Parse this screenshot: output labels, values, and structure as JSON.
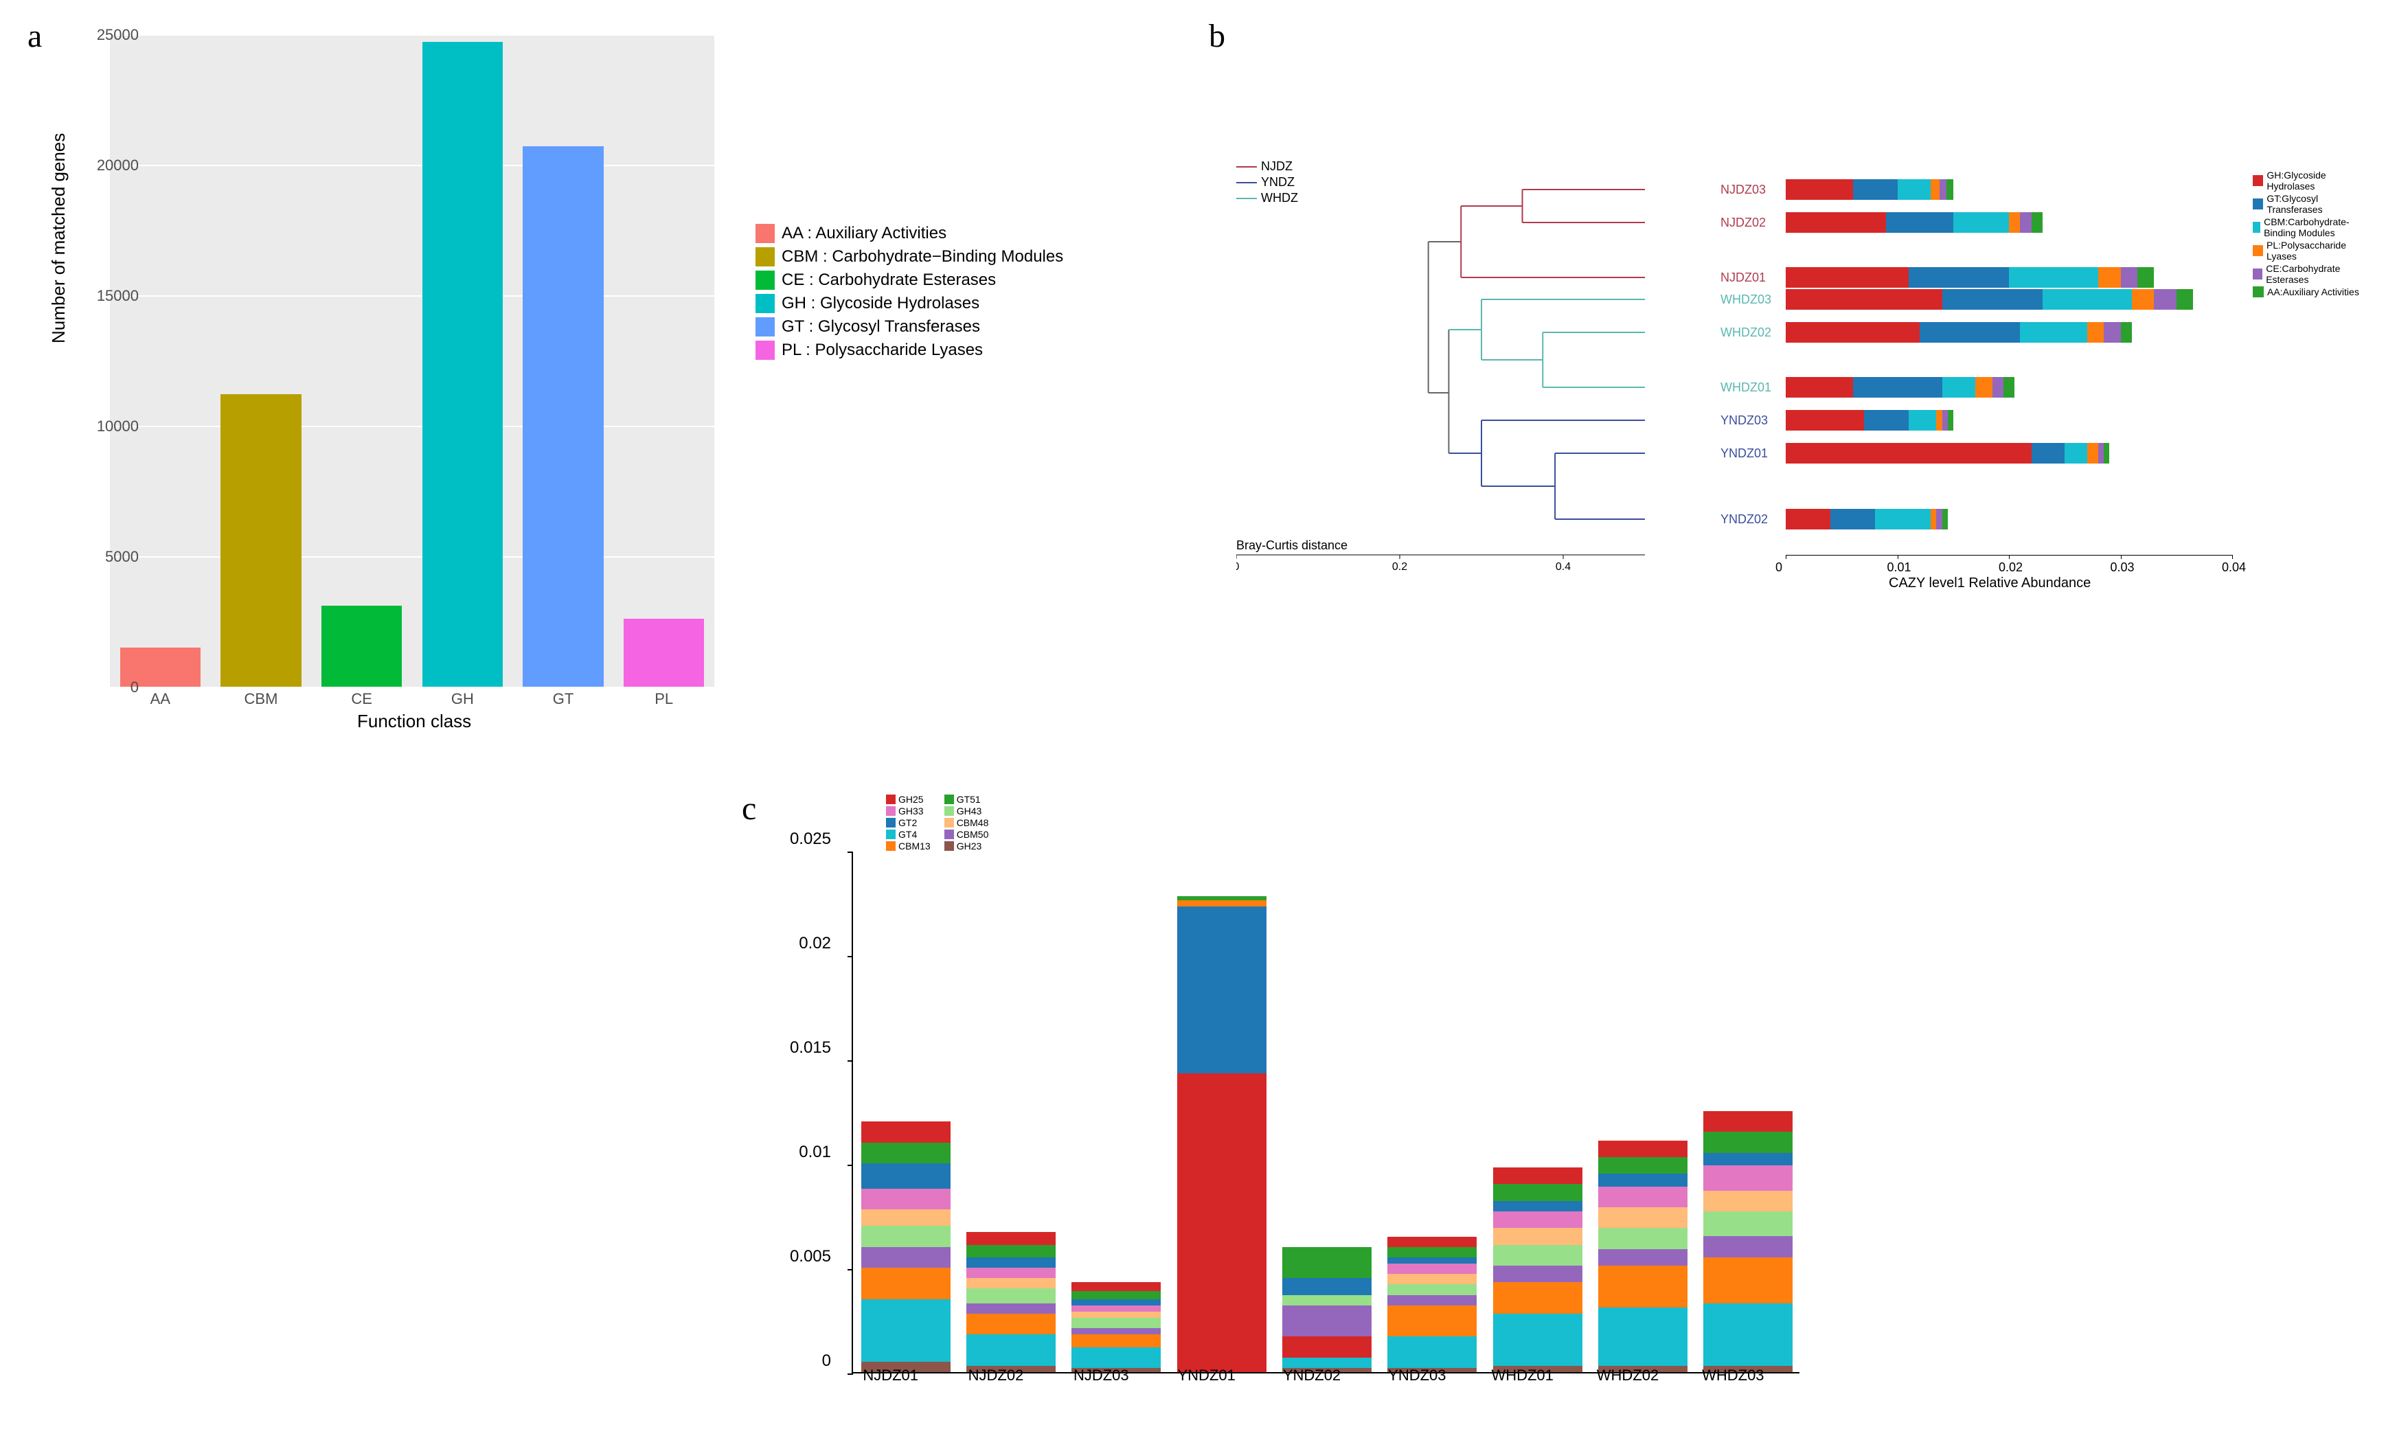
{
  "panelA": {
    "label": "a",
    "type": "bar",
    "xlabel": "Function class",
    "ylabel": "Number of matched genes",
    "background_color": "#ebebeb",
    "grid_color": "#ffffff",
    "ylim": [
      0,
      25000
    ],
    "yticks": [
      0,
      5000,
      10000,
      15000,
      20000,
      25000
    ],
    "categories": [
      "AA",
      "CBM",
      "CE",
      "GH",
      "GT",
      "PL"
    ],
    "values": [
      1500,
      11200,
      3100,
      24700,
      20700,
      2600
    ],
    "colors": [
      "#f8766d",
      "#b79f00",
      "#00ba38",
      "#00bfc4",
      "#619cff",
      "#f564e3"
    ],
    "legend": [
      {
        "code": "AA",
        "label": "AA : Auxiliary Activities",
        "color": "#f8766d"
      },
      {
        "code": "CBM",
        "label": "CBM : Carbohydrate−Binding Modules",
        "color": "#b79f00"
      },
      {
        "code": "CE",
        "label": "CE : Carbohydrate Esterases",
        "color": "#00ba38"
      },
      {
        "code": "GH",
        "label": "GH : Glycoside Hydrolases",
        "color": "#00bfc4"
      },
      {
        "code": "GT",
        "label": "GT : Glycosyl Transferases",
        "color": "#619cff"
      },
      {
        "code": "PL",
        "label": "PL : Polysaccharide Lyases",
        "color": "#f564e3"
      }
    ]
  },
  "panelB": {
    "label": "b",
    "type": "dendrogram_stackedbar",
    "tree_legend": [
      {
        "label": "NJDZ",
        "color": "#b03a4e"
      },
      {
        "label": "YNDZ",
        "color": "#3a4e9e"
      },
      {
        "label": "WHDZ",
        "color": "#5ab7b0"
      }
    ],
    "cazy_legend": [
      {
        "label": "GH:Glycoside Hydrolases",
        "color": "#d62728"
      },
      {
        "label": "GT:Glycosyl Transferases",
        "color": "#1f77b4"
      },
      {
        "label": "CBM:Carbohydrate-Binding Modules",
        "color": "#17becf"
      },
      {
        "label": "PL:Polysaccharide Lyases",
        "color": "#ff7f0e"
      },
      {
        "label": "CE:Carbohydrate Esterases",
        "color": "#9467bd"
      },
      {
        "label": "AA:Auxiliary Activities",
        "color": "#2ca02c"
      }
    ],
    "bray_label": "Bray-Curtis distance",
    "bray_ticks": [
      0,
      0.2,
      0.4
    ],
    "bray_max": 0.5,
    "x_label": "CAZY level1 Relative Abundance",
    "x_ticks": [
      0,
      0.01,
      0.02,
      0.03,
      0.04
    ],
    "x_max": 0.04,
    "samples": [
      {
        "name": "NJDZ03",
        "color": "#b03a4e",
        "stacks": [
          {
            "c": "#d62728",
            "v": 0.006
          },
          {
            "c": "#1f77b4",
            "v": 0.004
          },
          {
            "c": "#17becf",
            "v": 0.003
          },
          {
            "c": "#ff7f0e",
            "v": 0.0008
          },
          {
            "c": "#9467bd",
            "v": 0.0006
          },
          {
            "c": "#2ca02c",
            "v": 0.0006
          }
        ]
      },
      {
        "name": "NJDZ02",
        "color": "#b03a4e",
        "stacks": [
          {
            "c": "#d62728",
            "v": 0.009
          },
          {
            "c": "#1f77b4",
            "v": 0.006
          },
          {
            "c": "#17becf",
            "v": 0.005
          },
          {
            "c": "#ff7f0e",
            "v": 0.001
          },
          {
            "c": "#9467bd",
            "v": 0.001
          },
          {
            "c": "#2ca02c",
            "v": 0.001
          }
        ]
      },
      {
        "name": "NJDZ01",
        "color": "#b03a4e",
        "stacks": [
          {
            "c": "#d62728",
            "v": 0.011
          },
          {
            "c": "#1f77b4",
            "v": 0.009
          },
          {
            "c": "#17becf",
            "v": 0.008
          },
          {
            "c": "#ff7f0e",
            "v": 0.002
          },
          {
            "c": "#9467bd",
            "v": 0.0015
          },
          {
            "c": "#2ca02c",
            "v": 0.0015
          }
        ]
      },
      {
        "name": "WHDZ03",
        "color": "#5ab7b0",
        "stacks": [
          {
            "c": "#d62728",
            "v": 0.014
          },
          {
            "c": "#1f77b4",
            "v": 0.009
          },
          {
            "c": "#17becf",
            "v": 0.008
          },
          {
            "c": "#ff7f0e",
            "v": 0.002
          },
          {
            "c": "#9467bd",
            "v": 0.002
          },
          {
            "c": "#2ca02c",
            "v": 0.0015
          }
        ]
      },
      {
        "name": "WHDZ02",
        "color": "#5ab7b0",
        "stacks": [
          {
            "c": "#d62728",
            "v": 0.012
          },
          {
            "c": "#1f77b4",
            "v": 0.009
          },
          {
            "c": "#17becf",
            "v": 0.006
          },
          {
            "c": "#ff7f0e",
            "v": 0.0015
          },
          {
            "c": "#9467bd",
            "v": 0.0015
          },
          {
            "c": "#2ca02c",
            "v": 0.001
          }
        ]
      },
      {
        "name": "WHDZ01",
        "color": "#5ab7b0",
        "stacks": [
          {
            "c": "#d62728",
            "v": 0.006
          },
          {
            "c": "#1f77b4",
            "v": 0.008
          },
          {
            "c": "#17becf",
            "v": 0.003
          },
          {
            "c": "#ff7f0e",
            "v": 0.0015
          },
          {
            "c": "#9467bd",
            "v": 0.001
          },
          {
            "c": "#2ca02c",
            "v": 0.001
          }
        ]
      },
      {
        "name": "YNDZ03",
        "color": "#3a4e9e",
        "stacks": [
          {
            "c": "#d62728",
            "v": 0.007
          },
          {
            "c": "#1f77b4",
            "v": 0.004
          },
          {
            "c": "#17becf",
            "v": 0.0025
          },
          {
            "c": "#ff7f0e",
            "v": 0.0005
          },
          {
            "c": "#9467bd",
            "v": 0.0005
          },
          {
            "c": "#2ca02c",
            "v": 0.0005
          }
        ]
      },
      {
        "name": "YNDZ01",
        "color": "#3a4e9e",
        "stacks": [
          {
            "c": "#d62728",
            "v": 0.022
          },
          {
            "c": "#1f77b4",
            "v": 0.003
          },
          {
            "c": "#17becf",
            "v": 0.002
          },
          {
            "c": "#ff7f0e",
            "v": 0.001
          },
          {
            "c": "#9467bd",
            "v": 0.0005
          },
          {
            "c": "#2ca02c",
            "v": 0.0005
          }
        ]
      },
      {
        "name": "YNDZ02",
        "color": "#3a4e9e",
        "stacks": [
          {
            "c": "#d62728",
            "v": 0.004
          },
          {
            "c": "#1f77b4",
            "v": 0.004
          },
          {
            "c": "#17becf",
            "v": 0.005
          },
          {
            "c": "#ff7f0e",
            "v": 0.0005
          },
          {
            "c": "#9467bd",
            "v": 0.0005
          },
          {
            "c": "#2ca02c",
            "v": 0.0005
          }
        ]
      }
    ],
    "dendro": {
      "lines": [
        {
          "x1": 0.47,
          "y1": 0.23,
          "x2": 0.47,
          "y2": 0.78,
          "c": "#666"
        },
        {
          "x1": 0.47,
          "y1": 0.23,
          "x2": 0.55,
          "y2": 0.23,
          "c": "#666"
        },
        {
          "x1": 0.55,
          "y1": 0.1,
          "x2": 0.55,
          "y2": 0.36,
          "c": "#b03a4e"
        },
        {
          "x1": 0.55,
          "y1": 0.1,
          "x2": 0.7,
          "y2": 0.1,
          "c": "#b03a4e"
        },
        {
          "x1": 0.7,
          "y1": 0.04,
          "x2": 0.7,
          "y2": 0.16,
          "c": "#b03a4e"
        },
        {
          "x1": 0.7,
          "y1": 0.04,
          "x2": 1.0,
          "y2": 0.04,
          "c": "#b03a4e"
        },
        {
          "x1": 0.7,
          "y1": 0.16,
          "x2": 1.0,
          "y2": 0.16,
          "c": "#b03a4e"
        },
        {
          "x1": 0.55,
          "y1": 0.36,
          "x2": 1.0,
          "y2": 0.36,
          "c": "#b03a4e"
        },
        {
          "x1": 0.47,
          "y1": 0.78,
          "x2": 0.52,
          "y2": 0.78,
          "c": "#666"
        },
        {
          "x1": 0.52,
          "y1": 0.55,
          "x2": 0.52,
          "y2": 1.0,
          "c": "#666"
        },
        {
          "x1": 0.52,
          "y1": 0.55,
          "x2": 0.6,
          "y2": 0.55,
          "c": "#5ab7b0"
        },
        {
          "x1": 0.6,
          "y1": 0.44,
          "x2": 0.6,
          "y2": 0.66,
          "c": "#5ab7b0"
        },
        {
          "x1": 0.6,
          "y1": 0.44,
          "x2": 1.0,
          "y2": 0.44,
          "c": "#5ab7b0"
        },
        {
          "x1": 0.6,
          "y1": 0.66,
          "x2": 0.75,
          "y2": 0.66,
          "c": "#5ab7b0"
        },
        {
          "x1": 0.75,
          "y1": 0.56,
          "x2": 0.75,
          "y2": 0.76,
          "c": "#5ab7b0"
        },
        {
          "x1": 0.75,
          "y1": 0.56,
          "x2": 1.0,
          "y2": 0.56,
          "c": "#5ab7b0"
        },
        {
          "x1": 0.75,
          "y1": 0.76,
          "x2": 1.0,
          "y2": 0.76,
          "c": "#5ab7b0"
        },
        {
          "x1": 0.52,
          "y1": 1.0,
          "x2": 0.6,
          "y2": 1.0,
          "c": "#3a4e9e"
        },
        {
          "x1": 0.6,
          "y1": 0.88,
          "x2": 0.6,
          "y2": 1.12,
          "c": "#3a4e9e"
        },
        {
          "x1": 0.6,
          "y1": 0.88,
          "x2": 1.0,
          "y2": 0.88,
          "c": "#3a4e9e"
        },
        {
          "x1": 0.6,
          "y1": 1.12,
          "x2": 0.78,
          "y2": 1.12,
          "c": "#3a4e9e"
        },
        {
          "x1": 0.78,
          "y1": 1.0,
          "x2": 0.78,
          "y2": 1.24,
          "c": "#3a4e9e"
        },
        {
          "x1": 0.78,
          "y1": 1.0,
          "x2": 1.0,
          "y2": 1.0,
          "c": "#3a4e9e"
        },
        {
          "x1": 0.78,
          "y1": 1.24,
          "x2": 1.0,
          "y2": 1.24,
          "c": "#3a4e9e"
        }
      ],
      "y_positions": [
        0.04,
        0.16,
        0.36,
        0.44,
        0.56,
        0.76,
        0.88,
        1.0,
        1.24
      ],
      "y_scale": 400
    }
  },
  "panelC": {
    "label": "c",
    "type": "stacked_bar",
    "ylim": [
      0,
      0.025
    ],
    "yticks": [
      0,
      0.005,
      0.01,
      0.015,
      0.02,
      0.025
    ],
    "categories": [
      "NJDZ01",
      "NJDZ02",
      "NJDZ03",
      "YNDZ01",
      "YNDZ02",
      "YNDZ03",
      "WHDZ01",
      "WHDZ02",
      "WHDZ03"
    ],
    "series_colors": {
      "GH25": "#d62728",
      "GH33": "#e377c2",
      "GT2": "#1f77b4",
      "GT4": "#17becf",
      "CBM13": "#ff7f0e",
      "GT51": "#2ca02c",
      "GH43": "#98df8a",
      "CBM48": "#ffbb78",
      "CBM50": "#9467bd",
      "GH23": "#8c564b"
    },
    "legend_items": [
      [
        "GH25",
        "GH33",
        "GT2",
        "GT4",
        "CBM13"
      ],
      [
        "GT51",
        "GH43",
        "CBM48",
        "CBM50",
        "GH23"
      ]
    ],
    "stacks": [
      [
        {
          "c": "#8c564b",
          "v": 0.0005
        },
        {
          "c": "#17becf",
          "v": 0.003
        },
        {
          "c": "#ff7f0e",
          "v": 0.0015
        },
        {
          "c": "#9467bd",
          "v": 0.001
        },
        {
          "c": "#98df8a",
          "v": 0.001
        },
        {
          "c": "#ffbb78",
          "v": 0.0008
        },
        {
          "c": "#e377c2",
          "v": 0.001
        },
        {
          "c": "#1f77b4",
          "v": 0.0012
        },
        {
          "c": "#2ca02c",
          "v": 0.001
        },
        {
          "c": "#d62728",
          "v": 0.001
        }
      ],
      [
        {
          "c": "#8c564b",
          "v": 0.0003
        },
        {
          "c": "#17becf",
          "v": 0.0015
        },
        {
          "c": "#ff7f0e",
          "v": 0.001
        },
        {
          "c": "#9467bd",
          "v": 0.0005
        },
        {
          "c": "#98df8a",
          "v": 0.0007
        },
        {
          "c": "#ffbb78",
          "v": 0.0005
        },
        {
          "c": "#e377c2",
          "v": 0.0005
        },
        {
          "c": "#1f77b4",
          "v": 0.0005
        },
        {
          "c": "#2ca02c",
          "v": 0.0006
        },
        {
          "c": "#d62728",
          "v": 0.0006
        }
      ],
      [
        {
          "c": "#8c564b",
          "v": 0.0002
        },
        {
          "c": "#17becf",
          "v": 0.001
        },
        {
          "c": "#ff7f0e",
          "v": 0.0006
        },
        {
          "c": "#9467bd",
          "v": 0.0003
        },
        {
          "c": "#98df8a",
          "v": 0.0005
        },
        {
          "c": "#ffbb78",
          "v": 0.0003
        },
        {
          "c": "#e377c2",
          "v": 0.0003
        },
        {
          "c": "#1f77b4",
          "v": 0.0003
        },
        {
          "c": "#2ca02c",
          "v": 0.0004
        },
        {
          "c": "#d62728",
          "v": 0.0004
        }
      ],
      [
        {
          "c": "#d62728",
          "v": 0.0143
        },
        {
          "c": "#1f77b4",
          "v": 0.008
        },
        {
          "c": "#ff7f0e",
          "v": 0.0003
        },
        {
          "c": "#2ca02c",
          "v": 0.0002
        }
      ],
      [
        {
          "c": "#8c564b",
          "v": 0.0002
        },
        {
          "c": "#17becf",
          "v": 0.0005
        },
        {
          "c": "#d62728",
          "v": 0.001
        },
        {
          "c": "#9467bd",
          "v": 0.0015
        },
        {
          "c": "#98df8a",
          "v": 0.0005
        },
        {
          "c": "#1f77b4",
          "v": 0.0008
        },
        {
          "c": "#2ca02c",
          "v": 0.0015
        }
      ],
      [
        {
          "c": "#8c564b",
          "v": 0.0002
        },
        {
          "c": "#17becf",
          "v": 0.0015
        },
        {
          "c": "#ff7f0e",
          "v": 0.0015
        },
        {
          "c": "#9467bd",
          "v": 0.0005
        },
        {
          "c": "#98df8a",
          "v": 0.0005
        },
        {
          "c": "#ffbb78",
          "v": 0.0005
        },
        {
          "c": "#e377c2",
          "v": 0.0005
        },
        {
          "c": "#1f77b4",
          "v": 0.0003
        },
        {
          "c": "#2ca02c",
          "v": 0.0005
        },
        {
          "c": "#d62728",
          "v": 0.0005
        }
      ],
      [
        {
          "c": "#8c564b",
          "v": 0.0003
        },
        {
          "c": "#17becf",
          "v": 0.0025
        },
        {
          "c": "#ff7f0e",
          "v": 0.0015
        },
        {
          "c": "#9467bd",
          "v": 0.0008
        },
        {
          "c": "#98df8a",
          "v": 0.001
        },
        {
          "c": "#ffbb78",
          "v": 0.0008
        },
        {
          "c": "#e377c2",
          "v": 0.0008
        },
        {
          "c": "#1f77b4",
          "v": 0.0005
        },
        {
          "c": "#2ca02c",
          "v": 0.0008
        },
        {
          "c": "#d62728",
          "v": 0.0008
        }
      ],
      [
        {
          "c": "#8c564b",
          "v": 0.0003
        },
        {
          "c": "#17becf",
          "v": 0.0028
        },
        {
          "c": "#ff7f0e",
          "v": 0.002
        },
        {
          "c": "#9467bd",
          "v": 0.0008
        },
        {
          "c": "#98df8a",
          "v": 0.001
        },
        {
          "c": "#ffbb78",
          "v": 0.001
        },
        {
          "c": "#e377c2",
          "v": 0.001
        },
        {
          "c": "#1f77b4",
          "v": 0.0006
        },
        {
          "c": "#2ca02c",
          "v": 0.0008
        },
        {
          "c": "#d62728",
          "v": 0.0008
        }
      ],
      [
        {
          "c": "#8c564b",
          "v": 0.0003
        },
        {
          "c": "#17becf",
          "v": 0.003
        },
        {
          "c": "#ff7f0e",
          "v": 0.0022
        },
        {
          "c": "#9467bd",
          "v": 0.001
        },
        {
          "c": "#98df8a",
          "v": 0.0012
        },
        {
          "c": "#ffbb78",
          "v": 0.001
        },
        {
          "c": "#e377c2",
          "v": 0.0012
        },
        {
          "c": "#1f77b4",
          "v": 0.0006
        },
        {
          "c": "#2ca02c",
          "v": 0.001
        },
        {
          "c": "#d62728",
          "v": 0.001
        }
      ]
    ]
  }
}
